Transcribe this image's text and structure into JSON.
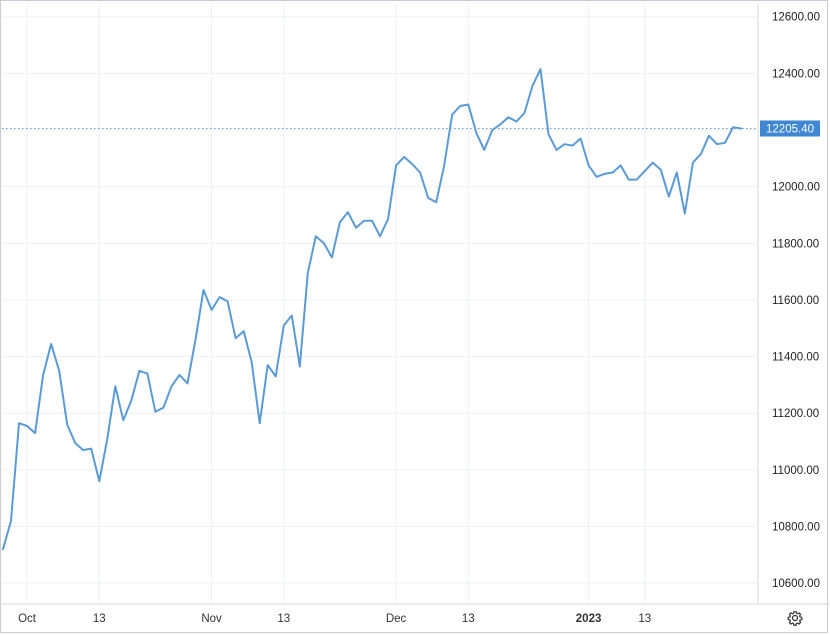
{
  "chart_data": {
    "type": "line",
    "title": "",
    "xlabel": "",
    "ylabel": "",
    "ylim": [
      10530,
      12645
    ],
    "y_ticks": [
      "12600.00",
      "12400.00",
      "12200.00",
      "12000.00",
      "11800.00",
      "11600.00",
      "11400.00",
      "11200.00",
      "11000.00",
      "10800.00",
      "10600.00"
    ],
    "x_ticks": [
      {
        "label": "Oct",
        "index": 3
      },
      {
        "label": "13",
        "index": 12
      },
      {
        "label": "Nov",
        "index": 26
      },
      {
        "label": "13",
        "index": 35
      },
      {
        "label": "Dec",
        "index": 49
      },
      {
        "label": "13",
        "index": 58
      },
      {
        "label": "2023",
        "index": 73
      },
      {
        "label": "13",
        "index": 80
      }
    ],
    "last_value_label": "12205.40",
    "grid": true,
    "color": "#5b9bd5",
    "series": [
      {
        "values": [
          10720,
          10820,
          11165,
          11155,
          11130,
          11335,
          11445,
          11350,
          11160,
          11095,
          11070,
          11075,
          10960,
          11110,
          11295,
          11175,
          11245,
          11350,
          11340,
          11205,
          11220,
          11295,
          11335,
          11305,
          11460,
          11635,
          11565,
          11610,
          11595,
          11465,
          11490,
          11380,
          11165,
          11370,
          11330,
          11510,
          11545,
          11365,
          11695,
          11825,
          11800,
          11750,
          11875,
          11910,
          11855,
          11880,
          11880,
          11825,
          11885,
          12075,
          12105,
          12080,
          12050,
          11960,
          11945,
          12075,
          12255,
          12285,
          12290,
          12190,
          12130,
          12200,
          12220,
          12245,
          12230,
          12260,
          12355,
          12415,
          12185,
          12130,
          12150,
          12145,
          12170,
          12075,
          12035,
          12045,
          12050,
          12075,
          12025,
          12025,
          12055,
          12085,
          12060,
          11965,
          12050,
          11905,
          12085,
          12115,
          12180,
          12150,
          12155,
          12210,
          12205.4
        ]
      }
    ]
  }
}
